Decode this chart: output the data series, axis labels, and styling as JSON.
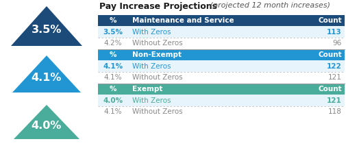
{
  "title_bold": "Pay Increase Projections",
  "title_italic": " (projected 12 month increases)",
  "sections": [
    {
      "header_bg": "#1c4b7a",
      "header_name": "Maintenance and Service",
      "row1_pct": "3.5%",
      "row1_name": "With Zeros",
      "row1_count": "113",
      "row2_pct": "4.2%",
      "row2_name": "Without Zeros",
      "row2_count": "96",
      "accent_color": "#2196d3"
    },
    {
      "header_bg": "#2196d3",
      "header_name": "Non-Exempt",
      "row1_pct": "4.1%",
      "row1_name": "With Zeros",
      "row1_count": "122",
      "row2_pct": "4.1%",
      "row2_name": "Without Zeros",
      "row2_count": "121",
      "accent_color": "#2196d3"
    },
    {
      "header_bg": "#4aac9a",
      "header_name": "Exempt",
      "row1_pct": "4.0%",
      "row1_name": "With Zeros",
      "row1_count": "121",
      "row2_pct": "4.1%",
      "row2_name": "Without Zeros",
      "row2_count": "118",
      "accent_color": "#4aac9a"
    }
  ],
  "triangles": [
    {
      "label": "3.5%",
      "color": "#1c4b7a"
    },
    {
      "label": "4.1%",
      "color": "#2196d3"
    },
    {
      "label": "4.0%",
      "color": "#4aac9a"
    }
  ],
  "bg_color": "#ffffff",
  "text_gray": "#888888",
  "text_dark": "#333333"
}
